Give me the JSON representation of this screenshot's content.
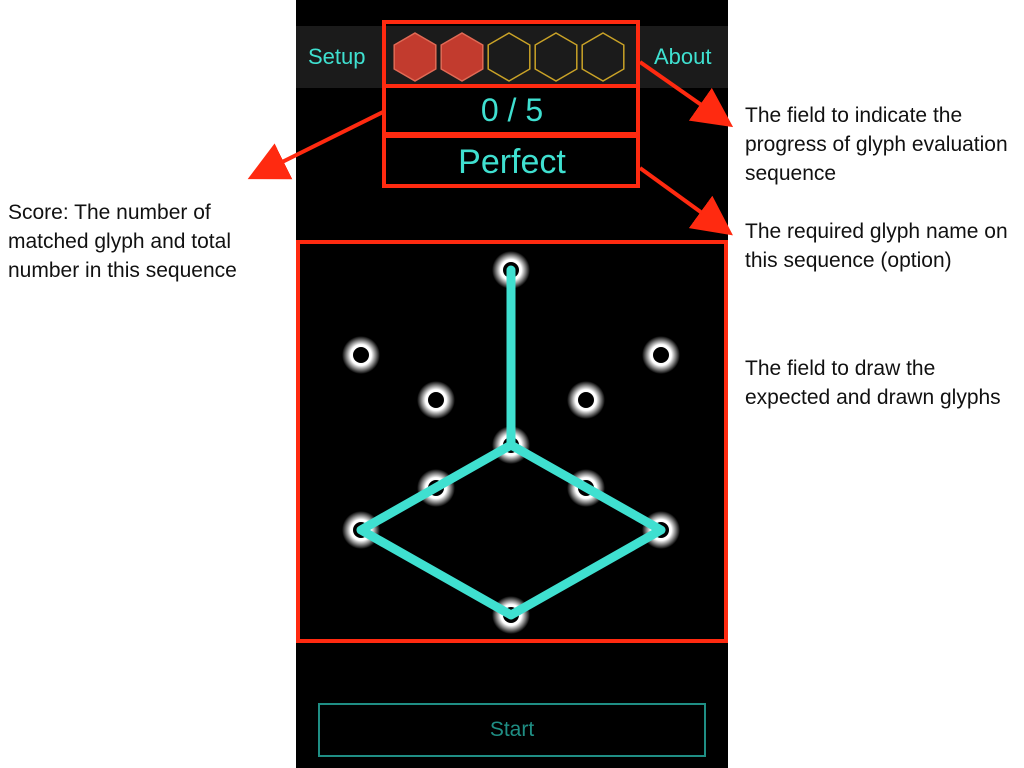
{
  "nav": {
    "setup_label": "Setup",
    "about_label": "About"
  },
  "progress": {
    "total": 5,
    "completed": 2,
    "filled_color": "#c23b2e",
    "empty_color": "#c9a227"
  },
  "score": {
    "text": "0 / 5"
  },
  "glyph_name": {
    "text": "Perfect"
  },
  "colors": {
    "accent": "#3fe0d0",
    "annotation_box": "#ff2a10"
  },
  "start": {
    "label": "Start"
  },
  "annotations": {
    "score": "Score: The number of matched glyph and total number in this sequence",
    "progress": "The field to indicate the progress of glyph evaluation sequence",
    "glyph_name": "The required glyph name on this sequence (option)",
    "draw_field": "The field to draw the expected and drawn glyphs"
  }
}
